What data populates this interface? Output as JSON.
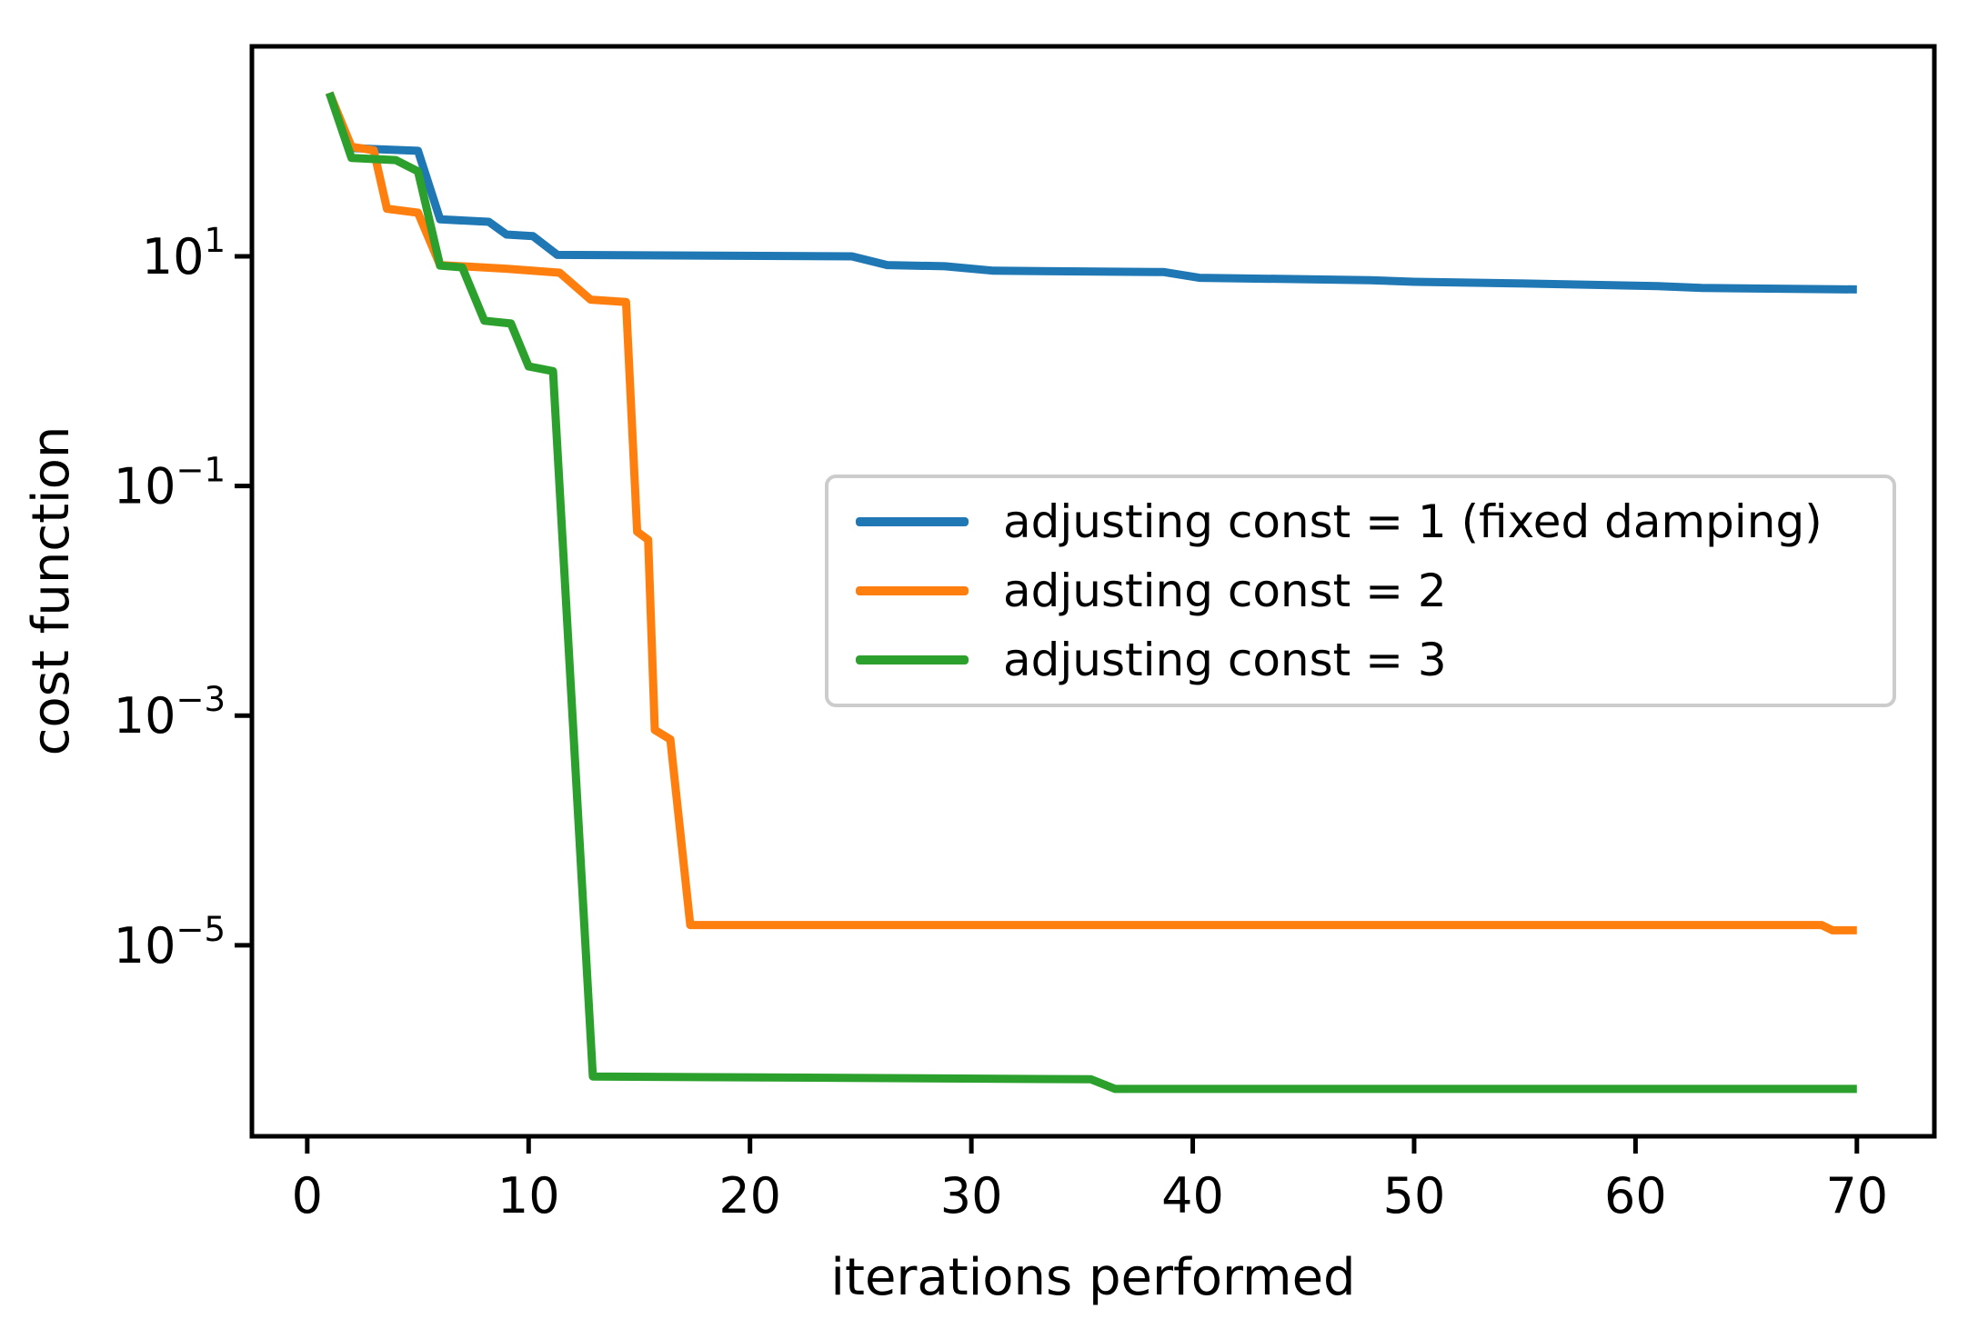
{
  "figure": {
    "background": "#ffffff",
    "text_color": "#000000",
    "spine_color": "#000000",
    "legend_border_color": "#cccccc"
  },
  "chart_data": {
    "type": "line",
    "title": "",
    "xlabel": "iterations performed",
    "ylabel": "cost function",
    "yscale": "log",
    "grid": false,
    "legend_position": "center-right",
    "xlim": [
      -2.5,
      73.5
    ],
    "ylim_log10": [
      -6.664,
      2.829
    ],
    "x_ticks": [
      {
        "value": 0,
        "label": "0"
      },
      {
        "value": 10,
        "label": "10"
      },
      {
        "value": 20,
        "label": "20"
      },
      {
        "value": 30,
        "label": "30"
      },
      {
        "value": 40,
        "label": "40"
      },
      {
        "value": 50,
        "label": "50"
      },
      {
        "value": 60,
        "label": "60"
      },
      {
        "value": 70,
        "label": "70"
      }
    ],
    "y_ticks": [
      {
        "log10": 1,
        "mantissa": "10",
        "exponent": "1"
      },
      {
        "log10": -1,
        "mantissa": "10",
        "exponent": "−1"
      },
      {
        "log10": -3,
        "mantissa": "10",
        "exponent": "−3"
      },
      {
        "log10": -5,
        "mantissa": "10",
        "exponent": "−5"
      }
    ],
    "series": [
      {
        "name": "adjusting const = 1 (fixed damping)",
        "color": "#1f77b4",
        "points": [
          [
            1,
            265
          ],
          [
            2,
            88
          ],
          [
            3,
            86
          ],
          [
            5,
            83
          ],
          [
            6,
            21
          ],
          [
            8.2,
            20
          ],
          [
            9,
            15.5
          ],
          [
            10.2,
            15
          ],
          [
            11.3,
            10.3
          ],
          [
            24.6,
            10
          ],
          [
            26.2,
            8.4
          ],
          [
            28.8,
            8.2
          ],
          [
            31,
            7.5
          ],
          [
            38.7,
            7.3
          ],
          [
            40.3,
            6.5
          ],
          [
            48,
            6.2
          ],
          [
            50,
            6.0
          ],
          [
            55,
            5.8
          ],
          [
            61,
            5.5
          ],
          [
            63,
            5.3
          ],
          [
            70,
            5.15
          ]
        ]
      },
      {
        "name": "adjusting const = 2",
        "color": "#ff7f0e",
        "points": [
          [
            1,
            265
          ],
          [
            2,
            90
          ],
          [
            3,
            84
          ],
          [
            3.6,
            26
          ],
          [
            5,
            24
          ],
          [
            6,
            8.4
          ],
          [
            9,
            7.8
          ],
          [
            11.4,
            7.2
          ],
          [
            12.8,
            4.2
          ],
          [
            14.4,
            4.0
          ],
          [
            14.9,
            0.04
          ],
          [
            15.4,
            0.034
          ],
          [
            15.7,
            0.00075
          ],
          [
            16.4,
            0.00062
          ],
          [
            17.3,
            1.5e-05
          ],
          [
            68.4,
            1.5e-05
          ],
          [
            68.9,
            1.35e-05
          ],
          [
            70,
            1.35e-05
          ]
        ]
      },
      {
        "name": "adjusting const = 3",
        "color": "#2ca02c",
        "points": [
          [
            1,
            265
          ],
          [
            2,
            72
          ],
          [
            4,
            69
          ],
          [
            5,
            55
          ],
          [
            6,
            8.3
          ],
          [
            7,
            8.0
          ],
          [
            8,
            2.75
          ],
          [
            9.2,
            2.6
          ],
          [
            10,
            1.1
          ],
          [
            11.1,
            1.0
          ],
          [
            12.9,
            7.2e-07
          ],
          [
            35.4,
            6.8e-07
          ],
          [
            36.5,
            5.6e-07
          ],
          [
            70,
            5.6e-07
          ]
        ]
      }
    ]
  }
}
